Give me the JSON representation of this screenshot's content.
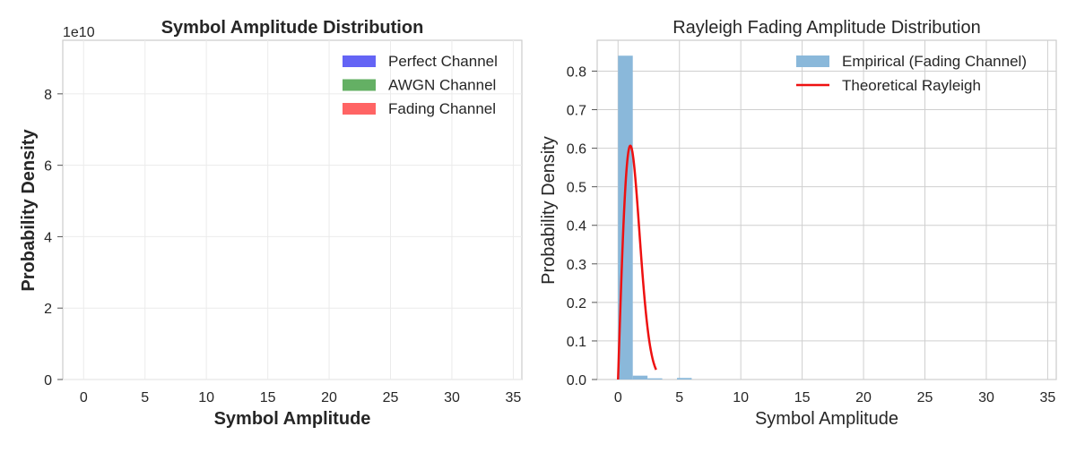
{
  "chart_data": [
    {
      "type": "histogram",
      "title": "Symbol Amplitude Distribution",
      "xlabel": "Symbol Amplitude",
      "ylabel": "Probability Density",
      "y_offset_text": "1e10",
      "xlim": [
        -1.7,
        35.7
      ],
      "ylim": [
        0,
        9.5
      ],
      "y_scale_factor": 10000000000.0,
      "xticks": [
        0,
        5,
        10,
        15,
        20,
        25,
        30,
        35
      ],
      "yticks": [
        0,
        2,
        4,
        6,
        8
      ],
      "grid": true,
      "legend_position": "top-right",
      "series": [
        {
          "name": "Perfect Channel",
          "color": "#6464f5",
          "values": []
        },
        {
          "name": "AWGN Channel",
          "color": "#64b064",
          "values": []
        },
        {
          "name": "Fading Channel",
          "color": "#ff6464",
          "values": []
        }
      ]
    },
    {
      "type": "histogram+line",
      "title": "Rayleigh Fading Amplitude Distribution",
      "xlabel": "Symbol Amplitude",
      "ylabel": "Probability Density",
      "xlim": [
        -1.7,
        35.7
      ],
      "ylim": [
        0,
        0.88
      ],
      "xticks": [
        0,
        5,
        10,
        15,
        20,
        25,
        30,
        35
      ],
      "yticks": [
        0,
        0.1,
        0.2,
        0.3,
        0.4,
        0.5,
        0.6,
        0.7,
        0.8
      ],
      "ytick_labels": [
        "0.0",
        "0.1",
        "0.2",
        "0.3",
        "0.4",
        "0.5",
        "0.6",
        "0.7",
        "0.8"
      ],
      "grid": true,
      "legend_position": "top-right",
      "histogram": {
        "name": "Empirical (Fading Channel)",
        "color": "#8ab8da",
        "bins": [
          {
            "x0": 0.0,
            "x1": 1.2,
            "density": 0.84
          },
          {
            "x0": 1.2,
            "x1": 2.4,
            "density": 0.01
          },
          {
            "x0": 2.4,
            "x1": 3.6,
            "density": 0.003
          },
          {
            "x0": 3.6,
            "x1": 4.8,
            "density": 0.0
          },
          {
            "x0": 4.8,
            "x1": 6.0,
            "density": 0.004
          }
        ]
      },
      "line": {
        "name": "Theoretical Rayleigh",
        "color": "#ee1111",
        "sigma": 1.0,
        "x_range": [
          0,
          3.1
        ]
      }
    }
  ]
}
